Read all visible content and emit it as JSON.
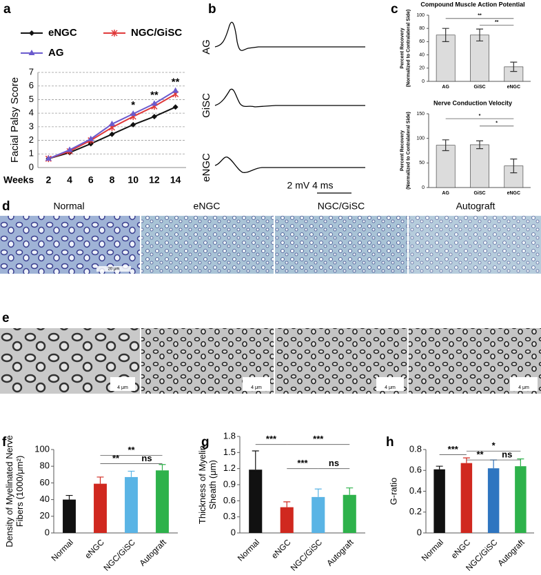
{
  "panel_labels": [
    "a",
    "b",
    "c",
    "d",
    "e",
    "f",
    "g",
    "h"
  ],
  "chart_data": [
    {
      "type": "line",
      "ylabel": "Facial Palsy Score",
      "xlabel": "Weeks",
      "x": [
        2,
        4,
        6,
        8,
        10,
        12,
        14
      ],
      "xlim": [
        1,
        15
      ],
      "xticks": [
        2,
        4,
        6,
        8,
        10,
        12,
        14
      ],
      "ylim": [
        0,
        7
      ],
      "yticks": [
        0,
        1,
        2,
        3,
        4,
        5,
        6,
        7
      ],
      "grid": true,
      "series": [
        {
          "name": "eNGC",
          "color": "#111111",
          "values": [
            0.65,
            1.1,
            1.75,
            2.45,
            3.15,
            3.75,
            4.45
          ]
        },
        {
          "name": "NGC/GiSC",
          "color": "#e0393a",
          "values": [
            0.65,
            1.2,
            2.0,
            2.95,
            3.75,
            4.5,
            5.4
          ]
        },
        {
          "name": "AG",
          "color": "#6a5acd",
          "values": [
            0.65,
            1.3,
            2.1,
            3.2,
            3.95,
            4.7,
            5.65
          ]
        }
      ],
      "annotations": [
        "*",
        "**",
        "**"
      ]
    },
    {
      "type": "bar",
      "title": "Compound Muscle Action Potential",
      "ylabel": [
        "Percent Recovery",
        "(Normalized to Contralateral Side)"
      ],
      "categories": [
        "AG",
        "GiSC",
        "eNGC"
      ],
      "values": [
        70,
        70,
        22
      ],
      "errors": [
        10,
        9,
        7
      ],
      "color": "#dcdcdc",
      "ylim": [
        0,
        100
      ],
      "yticks": [
        0,
        20,
        40,
        60,
        80,
        100
      ],
      "annotations": [
        "**",
        "**"
      ]
    },
    {
      "type": "bar",
      "title": "Nerve Conduction Velocity",
      "ylabel": [
        "Percent Recovery",
        "(Normalized to Contralateral Side)"
      ],
      "categories": [
        "AG",
        "GiSC",
        "eNGC"
      ],
      "values": [
        86,
        87,
        44
      ],
      "errors": [
        11,
        8,
        14
      ],
      "color": "#dcdcdc",
      "ylim": [
        0,
        150
      ],
      "yticks": [
        0,
        50,
        100,
        150
      ],
      "annotations": [
        "*",
        "*"
      ]
    },
    {
      "type": "bar",
      "ylabel": [
        "Density of Myelinated Nerve",
        "Fibers (1000/μm²)"
      ],
      "categories": [
        "Normal",
        "eNGC",
        "NGC/GiSC",
        "Autograft"
      ],
      "values": [
        40,
        59,
        67,
        75
      ],
      "errors": [
        5,
        8,
        7,
        7
      ],
      "colors": [
        "#111111",
        "#d0281f",
        "#5ab4e5",
        "#2eb24b"
      ],
      "ylim": [
        0,
        100
      ],
      "yticks": [
        0,
        20,
        40,
        60,
        80,
        100
      ],
      "annotations": [
        "**",
        "**",
        "ns"
      ]
    },
    {
      "type": "bar",
      "ylabel": [
        "Thickness of Myelin",
        "Sheath (μm)"
      ],
      "categories": [
        "Normal",
        "eNGC",
        "NGC/GiSC",
        "Autograft"
      ],
      "values": [
        1.18,
        0.48,
        0.67,
        0.71
      ],
      "errors": [
        0.35,
        0.1,
        0.15,
        0.13
      ],
      "colors": [
        "#111111",
        "#d0281f",
        "#5ab4e5",
        "#2eb24b"
      ],
      "ylim": [
        0,
        1.8
      ],
      "yticks": [
        0,
        0.3,
        0.6,
        0.9,
        1.2,
        1.5,
        1.8
      ],
      "annotations": [
        "***",
        "***",
        "***",
        "ns"
      ]
    },
    {
      "type": "bar",
      "ylabel": [
        "G-ratio"
      ],
      "categories": [
        "Normal",
        "eNGC",
        "NGC/GiSC",
        "Autograft"
      ],
      "values": [
        0.61,
        0.67,
        0.62,
        0.64
      ],
      "errors": [
        0.03,
        0.05,
        0.08,
        0.07
      ],
      "colors": [
        "#111111",
        "#d0281f",
        "#2e75c0",
        "#2eb24b"
      ],
      "ylim": [
        0,
        0.8
      ],
      "yticks": [
        0,
        0.2,
        0.4,
        0.6,
        0.8
      ],
      "annotations": [
        "***",
        "*",
        "**",
        "ns"
      ]
    }
  ],
  "traces": {
    "labels": [
      "AG",
      "GiSC",
      "eNGC"
    ],
    "scale": "2 mV 4 ms"
  },
  "micrographs": {
    "groups": [
      "Normal",
      "eNGC",
      "NGC/GiSC",
      "Autograft"
    ],
    "scale_bars": [
      "20 μm",
      "4 μm",
      "4 μm",
      "4 μm",
      "4 μm"
    ]
  }
}
